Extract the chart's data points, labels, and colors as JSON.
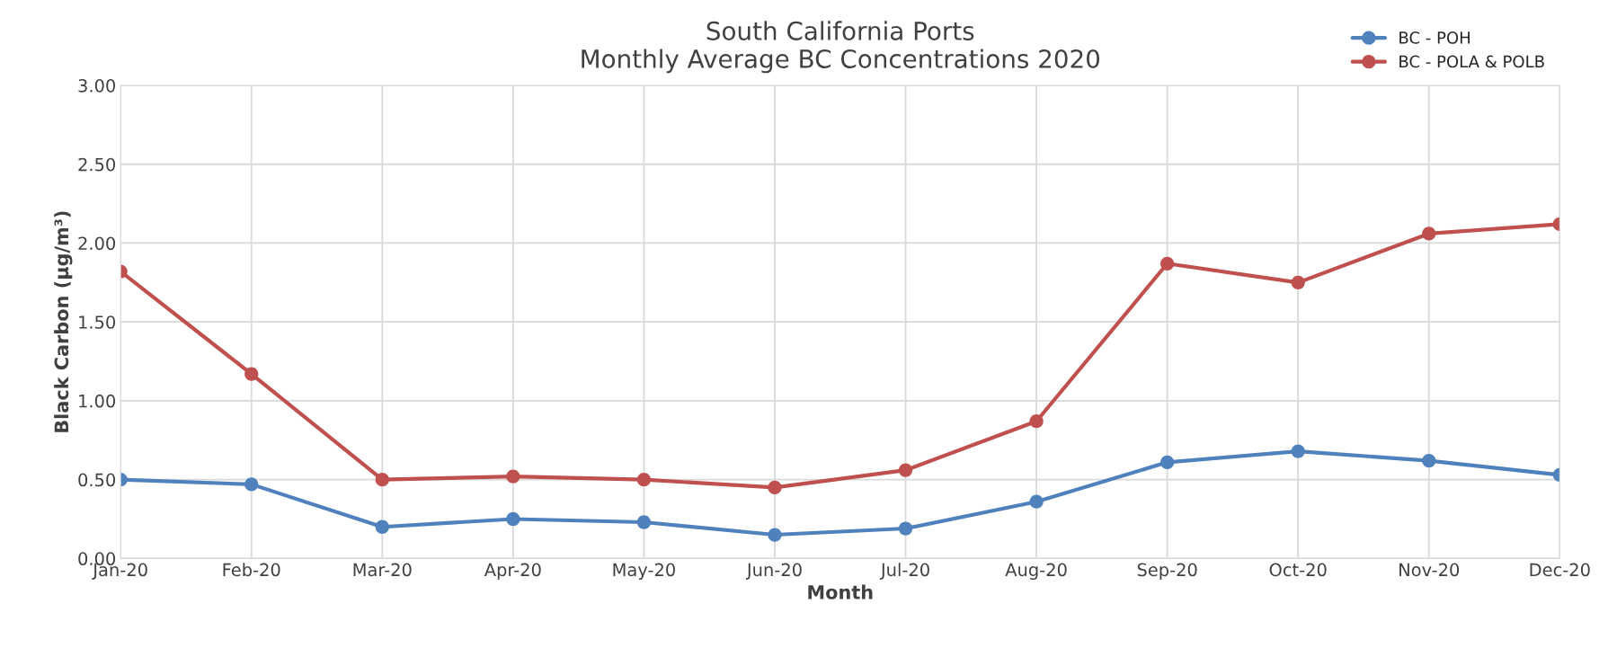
{
  "chart_data": {
    "type": "line",
    "title": "South California Ports\nMonthly Average BC Concentrations 2020",
    "xlabel": "Month",
    "ylabel": "Black Carbon (µg/m³)",
    "categories": [
      "Jan-20",
      "Feb-20",
      "Mar-20",
      "Apr-20",
      "May-20",
      "Jun-20",
      "Jul-20",
      "Aug-20",
      "Sep-20",
      "Oct-20",
      "Nov-20",
      "Dec-20"
    ],
    "series": [
      {
        "name": "BC - POH",
        "color": "#4f81bd",
        "values": [
          0.5,
          0.47,
          0.2,
          0.25,
          0.23,
          0.15,
          0.19,
          0.36,
          0.61,
          0.68,
          0.62,
          0.53
        ]
      },
      {
        "name": "BC - POLA & POLB",
        "color": "#c0504d",
        "values": [
          1.82,
          1.17,
          0.5,
          0.52,
          0.5,
          0.45,
          0.56,
          0.87,
          1.87,
          1.75,
          2.06,
          2.12
        ]
      }
    ],
    "ylim": [
      0,
      3
    ],
    "yticks": [
      {
        "value": 0,
        "label": "0.00"
      },
      {
        "value": 0.5,
        "label": "0.50"
      },
      {
        "value": 1,
        "label": "1.00"
      },
      {
        "value": 1.5,
        "label": "1.50"
      },
      {
        "value": 2,
        "label": "2.00"
      },
      {
        "value": 2.5,
        "label": "2.50"
      },
      {
        "value": 3,
        "label": "3.00"
      }
    ],
    "grid": true,
    "legend": "top right",
    "marker": "circle",
    "line_style": "solid"
  }
}
